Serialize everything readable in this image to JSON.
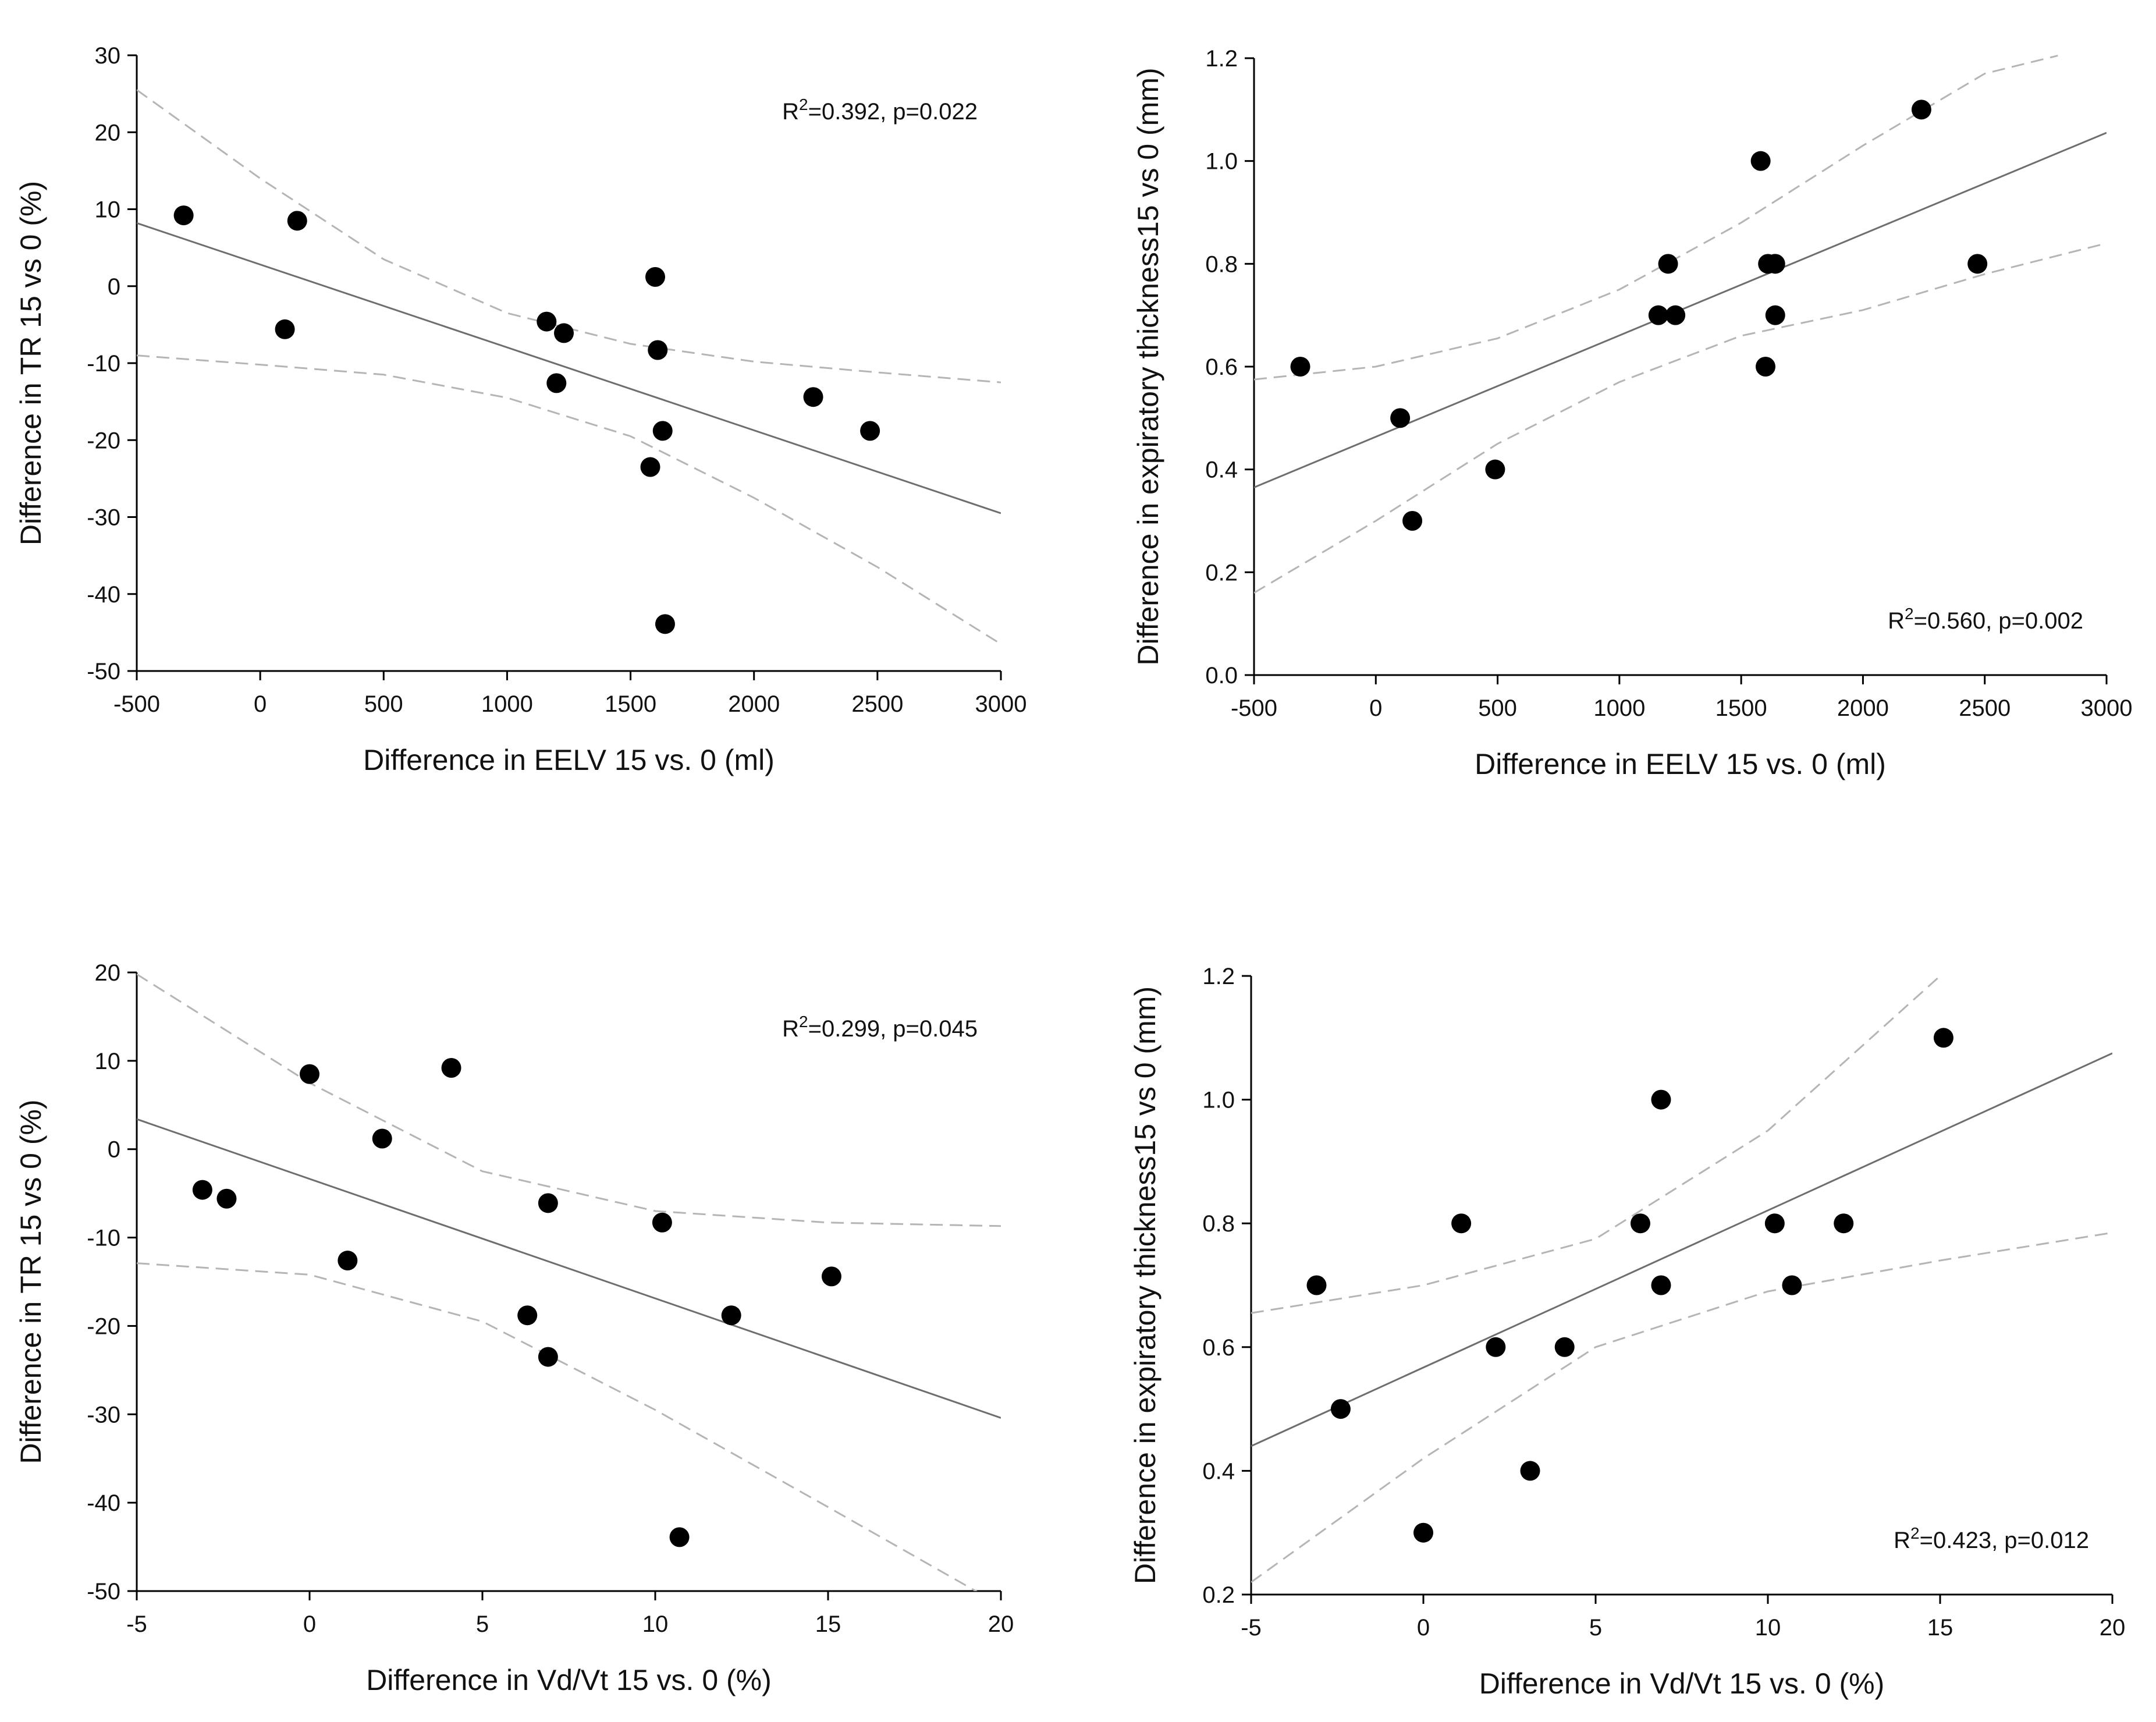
{
  "chart_data": [
    {
      "type": "scatter",
      "xlabel": "Difference in EELV 15 vs. 0 (ml)",
      "ylabel": "Difference in TR 15 vs 0 (%)",
      "xlim": [
        -500,
        3000
      ],
      "ylim": [
        -50,
        30
      ],
      "xticks": [
        -500,
        0,
        500,
        1000,
        1500,
        2000,
        2500,
        3000
      ],
      "yticks": [
        -50,
        -40,
        -30,
        -20,
        -10,
        0,
        10,
        20,
        30
      ],
      "xtick_labels": [
        "-500",
        "0",
        "500",
        "1000",
        "1500",
        "2000",
        "2500",
        "3000"
      ],
      "ytick_labels": [
        "-50",
        "-40",
        "-30",
        "-20",
        "-10",
        "0",
        "10",
        "20",
        "30"
      ],
      "annotation": {
        "prefix": "R",
        "sup": "2",
        "text": "=0.392, p=0.022",
        "position": "top-right"
      },
      "x": [
        -310,
        150,
        100,
        1160,
        1230,
        1200,
        1600,
        1610,
        1630,
        1580,
        1640,
        2240,
        2470
      ],
      "y": [
        9.2,
        8.5,
        -5.6,
        -4.6,
        -6.1,
        -12.6,
        1.2,
        -8.3,
        -18.8,
        -23.5,
        -43.9,
        -14.4,
        -18.8
      ],
      "regression": {
        "x": [
          -500,
          3000
        ],
        "y": [
          8.2,
          -29.5
        ]
      },
      "ci_upper": {
        "x": [
          -500,
          0,
          500,
          1000,
          1500,
          2000,
          2500,
          3000
        ],
        "y": [
          25.5,
          14,
          3.5,
          -3.5,
          -7.5,
          -9.8,
          -11.2,
          -12.5
        ]
      },
      "ci_lower": {
        "x": [
          -500,
          0,
          500,
          1000,
          1500,
          2000,
          2500,
          3000
        ],
        "y": [
          -9,
          -10.2,
          -11.5,
          -14.5,
          -19.5,
          -27.5,
          -36.5,
          -46.5
        ]
      }
    },
    {
      "type": "scatter",
      "xlabel": "Difference in EELV 15 vs. 0 (ml)",
      "ylabel": "Difference in expiratory thickness15 vs 0 (mm)",
      "xlim": [
        -500,
        3000
      ],
      "ylim": [
        0,
        1.2
      ],
      "xticks": [
        -500,
        0,
        500,
        1000,
        1500,
        2000,
        2500,
        3000
      ],
      "yticks": [
        0,
        0.2,
        0.4,
        0.6,
        0.8,
        1.0,
        1.2
      ],
      "xtick_labels": [
        "-500",
        "0",
        "500",
        "1000",
        "1500",
        "2000",
        "2500",
        "3000"
      ],
      "ytick_labels": [
        "0.0",
        "0.2",
        "0.4",
        "0.6",
        "0.8",
        "1.0",
        "1.2"
      ],
      "annotation": {
        "prefix": "R",
        "sup": "2",
        "text": "=0.560, p=0.002",
        "position": "bottom-right"
      },
      "x": [
        -310,
        100,
        150,
        490,
        1160,
        1200,
        1230,
        1580,
        1600,
        1610,
        1640,
        1640,
        2240,
        2470
      ],
      "y": [
        0.6,
        0.5,
        0.3,
        0.4,
        0.7,
        0.8,
        0.7,
        1.0,
        0.6,
        0.8,
        0.8,
        0.7,
        1.1,
        0.8
      ],
      "regression": {
        "x": [
          -500,
          3000
        ],
        "y": [
          0.365,
          1.055
        ]
      },
      "ci_upper": {
        "x": [
          -500,
          0,
          500,
          1000,
          1500,
          2000,
          2500,
          2800
        ],
        "y": [
          0.575,
          0.6,
          0.655,
          0.75,
          0.88,
          1.03,
          1.17,
          1.205
        ]
      },
      "ci_lower": {
        "x": [
          -500,
          0,
          500,
          1000,
          1500,
          2000,
          2500,
          3000
        ],
        "y": [
          0.16,
          0.3,
          0.45,
          0.57,
          0.66,
          0.71,
          0.78,
          0.84
        ]
      }
    },
    {
      "type": "scatter",
      "xlabel": "Difference in Vd/Vt 15 vs. 0 (%)",
      "ylabel": "Difference in TR 15 vs 0 (%)",
      "xlim": [
        -5,
        20
      ],
      "ylim": [
        -50,
        20
      ],
      "xticks": [
        -5,
        0,
        5,
        10,
        15,
        20
      ],
      "yticks": [
        -50,
        -40,
        -30,
        -20,
        -10,
        0,
        10,
        20
      ],
      "xtick_labels": [
        "-5",
        "0",
        "5",
        "10",
        "15",
        "20"
      ],
      "ytick_labels": [
        "-50",
        "-40",
        "-30",
        "-20",
        "-10",
        "0",
        "10",
        "20"
      ],
      "annotation": {
        "prefix": "R",
        "sup": "2",
        "text": "=0.299, p=0.045",
        "position": "top-right"
      },
      "x": [
        -3.1,
        -2.4,
        0.0,
        1.1,
        2.1,
        4.1,
        6.3,
        6.9,
        6.9,
        10.2,
        10.7,
        12.2,
        15.1
      ],
      "y": [
        -4.6,
        -5.6,
        8.5,
        -12.6,
        1.2,
        9.2,
        -18.8,
        -6.1,
        -23.5,
        -8.3,
        -43.9,
        -18.8,
        -14.4
      ],
      "regression": {
        "x": [
          -5,
          20
        ],
        "y": [
          3.4,
          -30.4
        ]
      },
      "ci_upper": {
        "x": [
          -5,
          0,
          5,
          10,
          15,
          20
        ],
        "y": [
          19.8,
          7.5,
          -2.5,
          -7,
          -8.3,
          -8.7
        ]
      },
      "ci_lower": {
        "x": [
          -5,
          0,
          5,
          10,
          15,
          19.5
        ],
        "y": [
          -12.9,
          -14.2,
          -19.5,
          -29.5,
          -40.5,
          -50.5
        ]
      }
    },
    {
      "type": "scatter",
      "xlabel": "Difference in Vd/Vt 15 vs. 0 (%)",
      "ylabel": "Difference in expiratory thickness15 vs 0 (mm)",
      "xlim": [
        -5,
        20
      ],
      "ylim": [
        0.2,
        1.2
      ],
      "xticks": [
        -5,
        0,
        5,
        10,
        15,
        20
      ],
      "yticks": [
        0.2,
        0.4,
        0.6,
        0.8,
        1.0,
        1.2
      ],
      "xtick_labels": [
        "-5",
        "0",
        "5",
        "10",
        "15",
        "20"
      ],
      "ytick_labels": [
        "0.2",
        "0.4",
        "0.6",
        "0.8",
        "1.0",
        "1.2"
      ],
      "annotation": {
        "prefix": "R",
        "sup": "2",
        "text": "=0.423, p=0.012",
        "position": "bottom-right"
      },
      "x": [
        -3.1,
        -2.4,
        0.0,
        1.1,
        2.1,
        3.1,
        4.1,
        6.3,
        6.9,
        6.9,
        10.2,
        10.7,
        12.2,
        15.1
      ],
      "y": [
        0.7,
        0.5,
        0.3,
        0.8,
        0.6,
        0.4,
        0.6,
        0.8,
        1.0,
        0.7,
        0.8,
        0.7,
        0.8,
        1.1
      ],
      "regression": {
        "x": [
          -5,
          20
        ],
        "y": [
          0.44,
          1.075
        ]
      },
      "ci_upper": {
        "x": [
          -5,
          0,
          5,
          10,
          15
        ],
        "y": [
          0.655,
          0.7,
          0.775,
          0.95,
          1.2
        ]
      },
      "ci_lower": {
        "x": [
          -5,
          0,
          5,
          10,
          15,
          20
        ],
        "y": [
          0.22,
          0.42,
          0.6,
          0.69,
          0.74,
          0.785
        ]
      }
    }
  ]
}
